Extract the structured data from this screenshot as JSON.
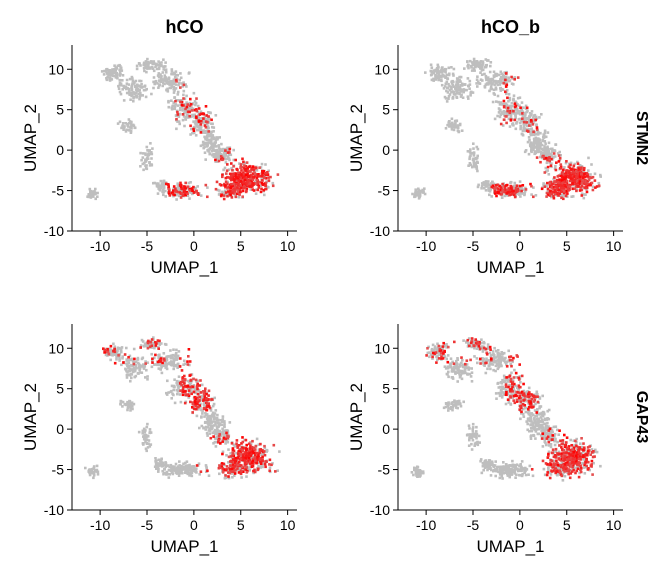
{
  "chart_data": {
    "type": "scatter",
    "layout": "2x2 facet grid",
    "columns": [
      "hCO",
      "hCO_b"
    ],
    "rows": [
      "STMN2",
      "GAP43"
    ],
    "xlabel": "UMAP_1",
    "ylabel": "UMAP_2",
    "xlim": [
      -13,
      11
    ],
    "ylim": [
      -10,
      13
    ],
    "xticks": [
      "-10",
      "-5",
      "0",
      "5",
      "10"
    ],
    "yticks": [
      "-10",
      "-5",
      "0",
      "5",
      "10"
    ],
    "grid": false,
    "legend": "none",
    "colors": {
      "low": "#bebebe",
      "high": "#ff0000"
    },
    "panels": [
      {
        "column": "hCO",
        "gene": "STMN2"
      },
      {
        "column": "hCO_b",
        "gene": "STMN2"
      },
      {
        "column": "hCO",
        "gene": "GAP43"
      },
      {
        "column": "hCO_b",
        "gene": "GAP43"
      }
    ]
  }
}
